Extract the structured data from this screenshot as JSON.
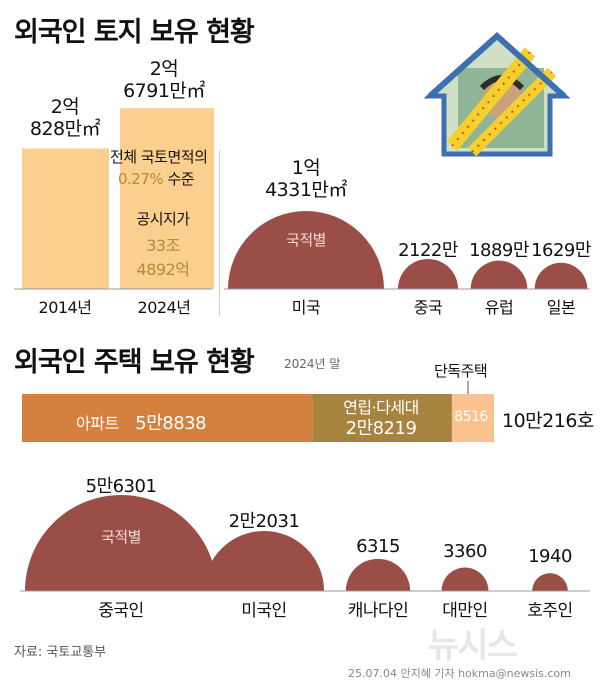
{
  "colors": {
    "bar_light": "#fbcf8e",
    "dome": "#9b4e47",
    "apt": "#d4803e",
    "villa": "#a78340",
    "house": "#f9c28e",
    "gold_text": "#b8893a"
  },
  "land": {
    "title": "외국인 토지 보유 현황",
    "bars": {
      "categories": [
        "2014년",
        "2024년"
      ],
      "values": [
        2.0828,
        2.6791
      ],
      "value_labels": [
        [
          "2억",
          "828만㎡"
        ],
        [
          "2억",
          "6791만㎡"
        ]
      ],
      "annotation": {
        "line1": "전체 국토면적의",
        "pct": "0.27%",
        "line2": "수준",
        "price_label": "공시지가",
        "price1": "33조",
        "price2": "4892억"
      }
    },
    "nationality": {
      "inner_label": "국적별",
      "categories": [
        "미국",
        "중국",
        "유럽",
        "일본"
      ],
      "values": [
        14331,
        2122,
        1889,
        1629
      ],
      "value_labels": [
        [
          "1억",
          "4331만㎡"
        ],
        [
          "2122만"
        ],
        [
          "1889만"
        ],
        [
          "1629만"
        ]
      ]
    }
  },
  "housing": {
    "title": "외국인 주택 보유 현황",
    "subtitle": "2024년 말",
    "stack": {
      "segments": [
        {
          "name": "아파트",
          "value": 58838,
          "value_label": "5만8838"
        },
        {
          "name": "연립·다세대",
          "value": 28219,
          "value_label": "2만8219"
        },
        {
          "name": "단독주택",
          "value": 8516,
          "value_label": "8516"
        }
      ],
      "total_label": "10만216호"
    },
    "nationality": {
      "inner_label": "국적별",
      "categories": [
        "중국인",
        "미국인",
        "캐나다인",
        "대만인",
        "호주인"
      ],
      "values": [
        56301,
        22031,
        6315,
        3360,
        1940
      ],
      "value_labels": [
        "5만6301",
        "2만2031",
        "6315",
        "3360",
        "1940"
      ]
    }
  },
  "chart_data": [
    {
      "type": "bar",
      "title": "외국인 토지 보유 현황",
      "categories": [
        "2014년",
        "2024년"
      ],
      "values": [
        20828,
        26791
      ],
      "unit": "만㎡"
    },
    {
      "type": "bar",
      "categories": [
        "미국",
        "중국",
        "유럽",
        "일본"
      ],
      "values": [
        14331,
        2122,
        1889,
        1629
      ],
      "unit": "만㎡"
    },
    {
      "type": "bar",
      "title": "외국인 주택 보유 현황",
      "categories": [
        "아파트",
        "연립·다세대",
        "단독주택"
      ],
      "values": [
        58838,
        28219,
        8516
      ],
      "total": 100216
    },
    {
      "type": "bar",
      "categories": [
        "중국인",
        "미국인",
        "캐나다인",
        "대만인",
        "호주인"
      ],
      "values": [
        56301,
        22031,
        6315,
        3360,
        1940
      ]
    }
  ],
  "footer": {
    "source": "자료: 국토교통부",
    "credit": "25.07.04 안지혜 기자 hokma@newsis.com",
    "logo": "뉴시스"
  }
}
